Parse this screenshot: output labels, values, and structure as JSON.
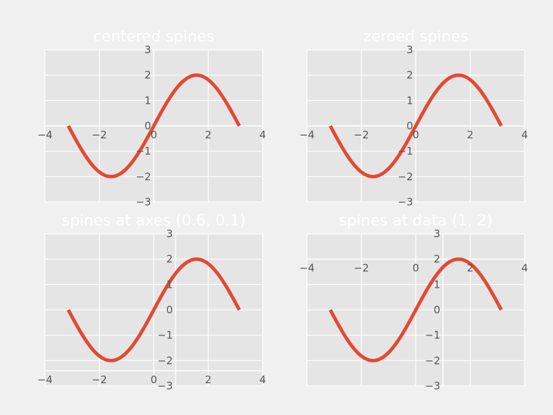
{
  "style": {
    "figure_bg": "#F0F0F0",
    "axes_bg": "#E5E5E5",
    "grid": "#FFFFFF",
    "line": "#E24A33",
    "tick_label": "#555555",
    "title": "#FFFFFF"
  },
  "chart_data": [
    {
      "type": "line",
      "title": "centered spines",
      "function": "2*sin(x)",
      "x_range": [
        -3.14159,
        3.14159
      ],
      "xlim": [
        -4,
        4
      ],
      "ylim": [
        -3,
        3
      ],
      "xticks": [
        "−4",
        "−2",
        "0",
        "2",
        "4"
      ],
      "yticks": [
        "−3",
        "−2",
        "−1",
        "0",
        "1",
        "2",
        "3"
      ],
      "spine_x": [
        "data",
        0
      ],
      "spine_y": [
        "data",
        0
      ],
      "grid": true
    },
    {
      "type": "line",
      "title": "zeroed spines",
      "function": "2*sin(x)",
      "x_range": [
        -3.14159,
        3.14159
      ],
      "xlim": [
        -4,
        4
      ],
      "ylim": [
        -3,
        3
      ],
      "xticks": [
        "−4",
        "−2",
        "0",
        "2",
        "4"
      ],
      "yticks": [
        "−3",
        "−2",
        "−1",
        "0",
        "1",
        "2",
        "3"
      ],
      "spine_x": [
        "data",
        0
      ],
      "spine_y": [
        "data",
        0
      ],
      "grid": true
    },
    {
      "type": "line",
      "title": "spines at axes (0.6, 0.1)",
      "function": "2*sin(x)",
      "x_range": [
        -3.14159,
        3.14159
      ],
      "xlim": [
        -4,
        4
      ],
      "ylim": [
        -3,
        3
      ],
      "xticks": [
        "−4",
        "−2",
        "0",
        "2",
        "4"
      ],
      "yticks": [
        "−3",
        "−2",
        "−1",
        "0",
        "1",
        "2",
        "3"
      ],
      "spine_x": [
        "axes",
        0.6
      ],
      "spine_y": [
        "axes",
        0.1
      ],
      "grid": true
    },
    {
      "type": "line",
      "title": "spines at data (1, 2)",
      "function": "2*sin(x)",
      "x_range": [
        -3.14159,
        3.14159
      ],
      "xlim": [
        -4,
        4
      ],
      "ylim": [
        -3,
        3
      ],
      "xticks": [
        "−4",
        "−2",
        "0",
        "2",
        "4"
      ],
      "yticks": [
        "−3",
        "−2",
        "−1",
        "0",
        "1",
        "2",
        "3"
      ],
      "spine_x": [
        "data",
        1
      ],
      "spine_y": [
        "data",
        2
      ],
      "grid": true
    }
  ]
}
